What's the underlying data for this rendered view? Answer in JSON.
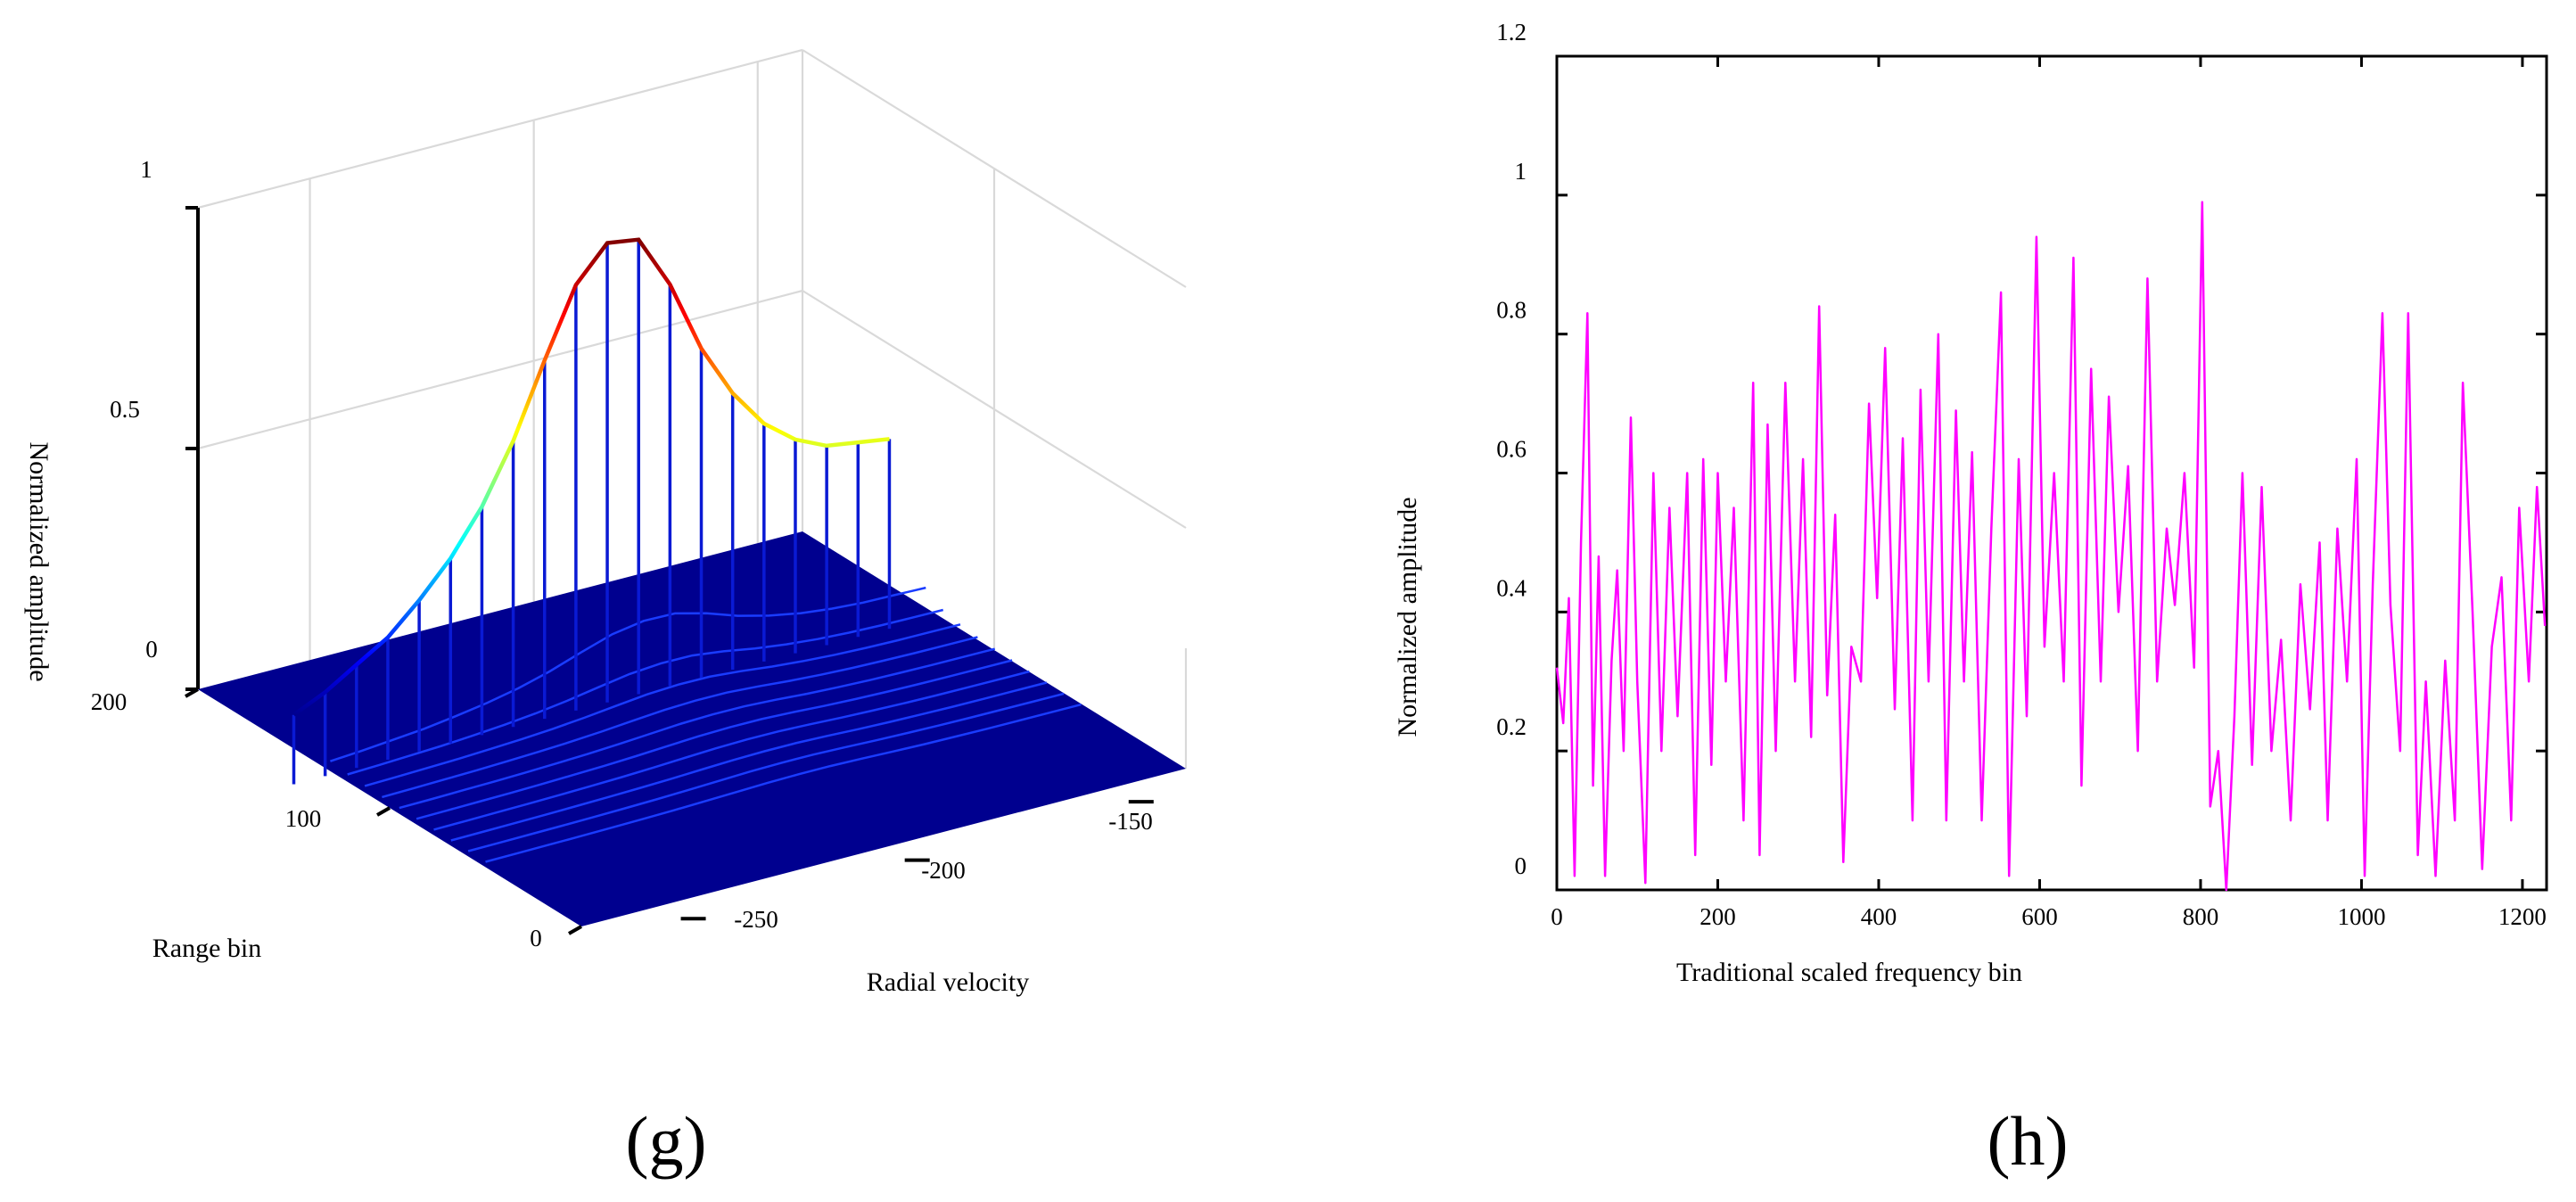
{
  "chart_data": [
    {
      "type": "3d-waterfall",
      "panel_label": "(g)",
      "xlabel": "Radial velocity",
      "ylabel": "Range bin",
      "zlabel": "Normalized amplitude",
      "x_ticks": [
        "-250",
        "-200",
        "-150"
      ],
      "y_ticks": [
        "0",
        "100",
        "200"
      ],
      "z_ticks": [
        "0",
        "0.5",
        "1"
      ],
      "zlim": [
        0,
        1
      ],
      "peak": {
        "radial_velocity": -202,
        "amplitude": 0.89
      },
      "ridge": {
        "radial_velocity": [
          -275,
          -268,
          -261,
          -254,
          -247,
          -240,
          -233,
          -226,
          -219,
          -212,
          -205,
          -198,
          -191,
          -184,
          -177,
          -170,
          -163,
          -156,
          -149,
          -142
        ],
        "amplitude": [
          0.07,
          0.1,
          0.14,
          0.18,
          0.24,
          0.31,
          0.4,
          0.52,
          0.67,
          0.81,
          0.88,
          0.87,
          0.76,
          0.61,
          0.5,
          0.42,
          0.37,
          0.34,
          0.33,
          0.32
        ]
      },
      "colormap": "jet"
    },
    {
      "type": "line",
      "panel_label": "(h)",
      "xlabel": "Traditional scaled frequency bin",
      "ylabel": "Normalized amplitude",
      "xlim": [
        0,
        1230
      ],
      "ylim": [
        0,
        1.2
      ],
      "x_ticks": [
        "0",
        "200",
        "400",
        "600",
        "800",
        "1000",
        "1200"
      ],
      "y_ticks": [
        "0",
        "0.2",
        "0.4",
        "0.6",
        "0.8",
        "1",
        "1.2"
      ],
      "color": "#ff00ff",
      "series": [
        {
          "name": "normalized amplitude",
          "x": [
            0,
            8,
            15,
            22,
            30,
            38,
            45,
            52,
            60,
            68,
            75,
            83,
            92,
            100,
            110,
            120,
            130,
            140,
            150,
            162,
            172,
            182,
            192,
            200,
            210,
            220,
            232,
            244,
            252,
            262,
            272,
            284,
            296,
            306,
            316,
            326,
            336,
            346,
            356,
            366,
            378,
            388,
            398,
            408,
            420,
            430,
            442,
            452,
            462,
            474,
            484,
            496,
            506,
            516,
            528,
            540,
            552,
            562,
            574,
            584,
            596,
            606,
            618,
            630,
            642,
            652,
            664,
            676,
            686,
            698,
            710,
            722,
            734,
            746,
            758,
            768,
            780,
            792,
            802,
            812,
            822,
            832,
            842,
            852,
            864,
            876,
            888,
            900,
            912,
            924,
            936,
            948,
            958,
            970,
            982,
            994,
            1004,
            1014,
            1026,
            1036,
            1048,
            1058,
            1070,
            1080,
            1092,
            1104,
            1116,
            1126,
            1138,
            1150,
            1162,
            1174,
            1186,
            1196,
            1208,
            1218,
            1228
          ],
          "values": [
            0.32,
            0.24,
            0.42,
            0.02,
            0.5,
            0.83,
            0.15,
            0.48,
            0.02,
            0.33,
            0.46,
            0.2,
            0.68,
            0.3,
            0.01,
            0.6,
            0.2,
            0.55,
            0.25,
            0.6,
            0.05,
            0.62,
            0.18,
            0.6,
            0.3,
            0.55,
            0.1,
            0.73,
            0.05,
            0.67,
            0.2,
            0.73,
            0.3,
            0.62,
            0.22,
            0.84,
            0.28,
            0.54,
            0.04,
            0.35,
            0.3,
            0.7,
            0.42,
            0.78,
            0.26,
            0.65,
            0.1,
            0.72,
            0.3,
            0.8,
            0.1,
            0.69,
            0.3,
            0.63,
            0.1,
            0.52,
            0.86,
            0.02,
            0.62,
            0.25,
            0.94,
            0.35,
            0.6,
            0.3,
            0.91,
            0.15,
            0.75,
            0.3,
            0.71,
            0.4,
            0.61,
            0.2,
            0.88,
            0.3,
            0.52,
            0.41,
            0.6,
            0.32,
            0.99,
            0.12,
            0.2,
            0.0,
            0.25,
            0.6,
            0.18,
            0.58,
            0.2,
            0.36,
            0.1,
            0.44,
            0.26,
            0.5,
            0.1,
            0.52,
            0.3,
            0.62,
            0.02,
            0.44,
            0.83,
            0.41,
            0.2,
            0.83,
            0.05,
            0.3,
            0.02,
            0.33,
            0.1,
            0.73,
            0.4,
            0.03,
            0.35,
            0.45,
            0.1,
            0.55,
            0.3,
            0.58,
            0.38
          ]
        }
      ]
    }
  ]
}
